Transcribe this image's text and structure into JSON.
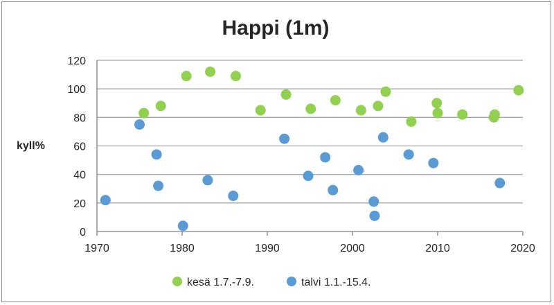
{
  "chart_data": {
    "type": "scatter",
    "title": "Happi (1m)",
    "ylabel": "kyll%",
    "xlabel": "",
    "xlim": [
      1970,
      2020
    ],
    "ylim": [
      0,
      120
    ],
    "xticks": [
      1970,
      1980,
      1990,
      2000,
      2010,
      2020
    ],
    "yticks": [
      0,
      20,
      40,
      60,
      80,
      100,
      120
    ],
    "grid": "horizontal",
    "legend": "bottom",
    "series": [
      {
        "name": "kesä 1.7.-7.9.",
        "color": "#92d050",
        "points": [
          [
            1975.5,
            83
          ],
          [
            1977.5,
            88
          ],
          [
            1980.5,
            109
          ],
          [
            1983.3,
            112
          ],
          [
            1986.3,
            109
          ],
          [
            1989.2,
            85
          ],
          [
            1992.2,
            96
          ],
          [
            1995.1,
            86
          ],
          [
            1998.0,
            92
          ],
          [
            2001.0,
            85
          ],
          [
            2003.0,
            88
          ],
          [
            2003.9,
            98
          ],
          [
            2006.9,
            77
          ],
          [
            2009.9,
            90
          ],
          [
            2010.0,
            83
          ],
          [
            2012.9,
            82
          ],
          [
            2016.6,
            80
          ],
          [
            2016.7,
            82
          ],
          [
            2019.5,
            99
          ]
        ]
      },
      {
        "name": "talvi 1.1.-15.4.",
        "color": "#5b9bd5",
        "points": [
          [
            1971.0,
            22
          ],
          [
            1975.0,
            75
          ],
          [
            1977.0,
            54
          ],
          [
            1977.2,
            32
          ],
          [
            1980.1,
            4
          ],
          [
            1983.0,
            36
          ],
          [
            1986.0,
            25
          ],
          [
            1992.0,
            65
          ],
          [
            1994.8,
            39
          ],
          [
            1996.8,
            52
          ],
          [
            1997.7,
            29
          ],
          [
            2000.7,
            43
          ],
          [
            2002.5,
            21
          ],
          [
            2002.6,
            11
          ],
          [
            2003.6,
            66
          ],
          [
            2006.6,
            54
          ],
          [
            2009.5,
            48
          ],
          [
            2017.3,
            34
          ]
        ]
      }
    ]
  }
}
